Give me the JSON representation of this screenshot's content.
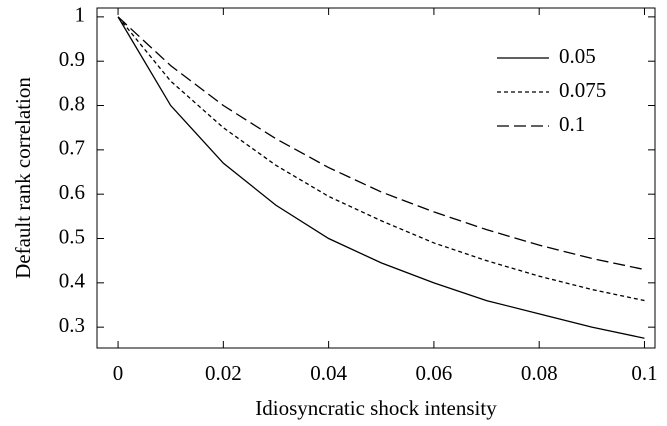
{
  "chart_data": {
    "type": "line",
    "xlabel": "Idiosyncratic shock intensity",
    "ylabel": "Default rank correlation",
    "x": [
      0,
      0.01,
      0.02,
      0.03,
      0.04,
      0.05,
      0.06,
      0.07,
      0.08,
      0.09,
      0.1
    ],
    "series": [
      {
        "name": "0.05",
        "color": "#000000",
        "linestyle": "solid",
        "values": [
          1,
          0.8,
          0.67,
          0.575,
          0.5,
          0.445,
          0.4,
          0.36,
          0.33,
          0.3,
          0.275
        ]
      },
      {
        "name": "0.075",
        "color": "#000000",
        "linestyle": "dotted",
        "values": [
          1,
          0.855,
          0.75,
          0.665,
          0.595,
          0.54,
          0.49,
          0.45,
          0.415,
          0.385,
          0.36
        ]
      },
      {
        "name": "0.1",
        "color": "#000000",
        "linestyle": "dashed",
        "values": [
          1,
          0.89,
          0.8,
          0.725,
          0.66,
          0.605,
          0.56,
          0.52,
          0.485,
          0.455,
          0.43
        ]
      }
    ],
    "xlim": [
      -0.004,
      0.102
    ],
    "ylim": [
      0.253,
      1.02
    ],
    "xticks": [
      0,
      0.02,
      0.04,
      0.06,
      0.08,
      0.1
    ],
    "yticks": [
      0.3,
      0.4,
      0.5,
      0.6,
      0.7,
      0.8,
      0.9,
      1
    ],
    "legend": "upper right",
    "grid": false
  }
}
